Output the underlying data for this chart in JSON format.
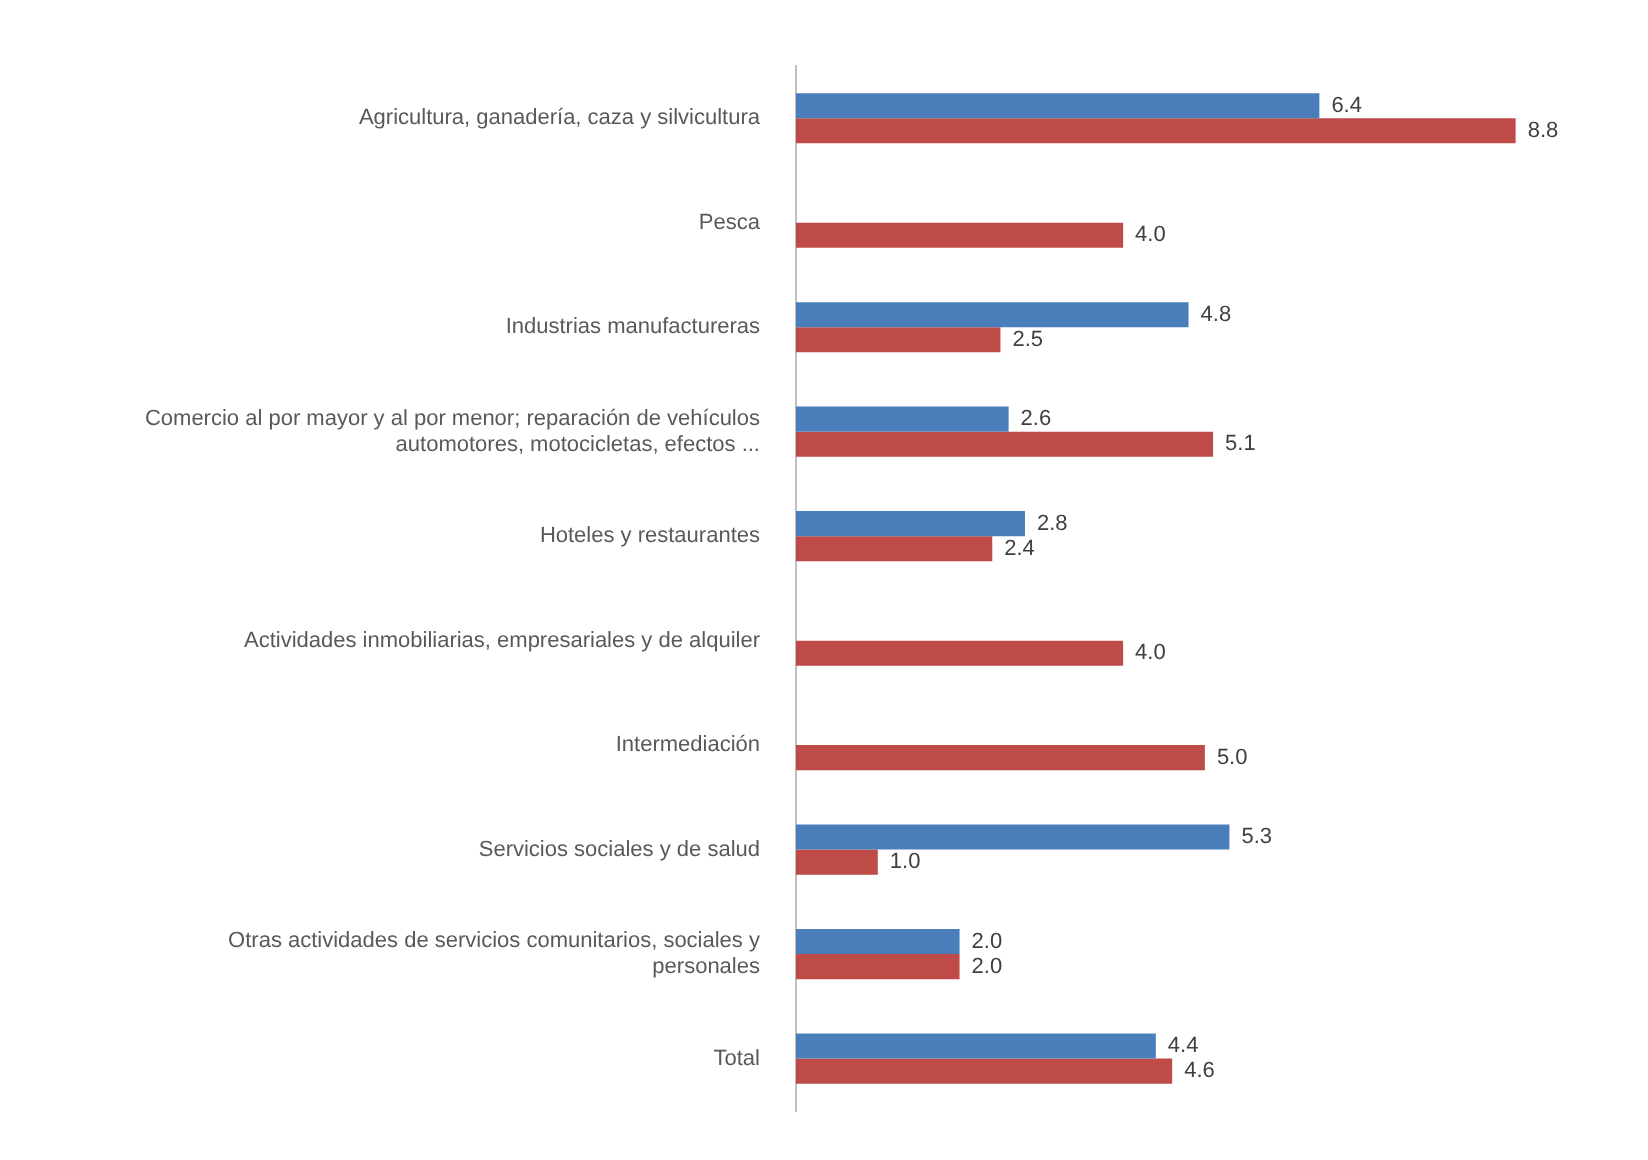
{
  "chart_data": {
    "type": "bar",
    "orientation": "horizontal",
    "categories": [
      "Agricultura, ganadería, caza y silvicultura",
      "Pesca",
      "Industrias manufactureras",
      "Comercio al por mayor y al por menor; reparación de vehículos automotores, motocicletas, efectos ...",
      "Hoteles y restaurantes",
      "Actividades inmobiliarias, empresariales y de alquiler",
      "Intermediación",
      "Servicios sociales y de salud",
      "Otras actividades de servicios comunitarios, sociales y personales",
      "Total"
    ],
    "series": [
      {
        "color": "#4a7ebb",
        "values": [
          6.4,
          null,
          4.8,
          2.6,
          2.8,
          null,
          null,
          5.3,
          2.0,
          4.4
        ],
        "value_labels": [
          "6.4",
          null,
          "4.8",
          "2.6",
          "2.8",
          null,
          null,
          "5.3",
          "2.0",
          "4.4"
        ]
      },
      {
        "color": "#be4b48",
        "values": [
          8.8,
          4.0,
          2.5,
          5.1,
          2.4,
          4.0,
          5.0,
          1.0,
          2.0,
          4.6
        ],
        "value_labels": [
          "8.8",
          "4.0",
          "2.5",
          "5.1",
          "2.4",
          "4.0",
          "5.0",
          "1.0",
          "2.0",
          "4.6"
        ]
      }
    ],
    "legend": false
  }
}
